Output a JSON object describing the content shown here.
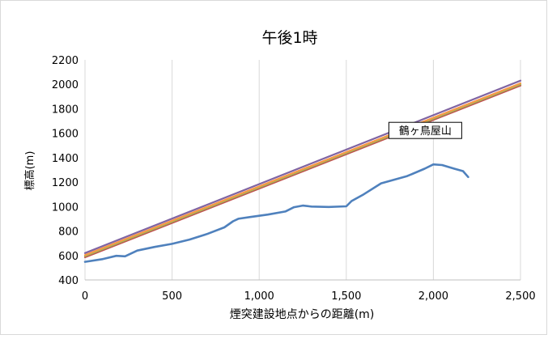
{
  "chart_data": {
    "type": "line",
    "title": "午後1時",
    "xlabel": "煙突建設地点からの距離(m)",
    "ylabel": "標高(m)",
    "xlim": [
      0,
      2500
    ],
    "ylim": [
      400,
      2200
    ],
    "grid": "vertical",
    "x_ticks": [
      0,
      500,
      1000,
      1500,
      2000,
      2500
    ],
    "x_tick_labels": [
      "0",
      "500",
      "1,000",
      "1,500",
      "2,000",
      "2,500"
    ],
    "y_ticks": [
      400,
      600,
      800,
      1000,
      1200,
      1400,
      1600,
      1800,
      2000,
      2200
    ],
    "y_tick_labels": [
      "400",
      "600",
      "800",
      "1000",
      "1200",
      "1400",
      "1600",
      "1800",
      "2000",
      "2200"
    ],
    "series": [
      {
        "color": "#c0504d",
        "values": [
          [
            0,
            585
          ],
          [
            2500,
            1990
          ]
        ]
      },
      {
        "color": "#9bbb59",
        "values": [
          [
            0,
            595
          ],
          [
            2500,
            2000
          ]
        ]
      },
      {
        "color": "#f79646",
        "values": [
          [
            0,
            603
          ],
          [
            2500,
            2008
          ]
        ]
      },
      {
        "color": "#8064a2",
        "values": [
          [
            0,
            620
          ],
          [
            2500,
            2030
          ]
        ]
      },
      {
        "color": "#4f81bd",
        "values": [
          [
            0,
            548
          ],
          [
            100,
            570
          ],
          [
            180,
            597
          ],
          [
            230,
            593
          ],
          [
            300,
            640
          ],
          [
            400,
            670
          ],
          [
            500,
            695
          ],
          [
            600,
            730
          ],
          [
            700,
            775
          ],
          [
            800,
            830
          ],
          [
            850,
            880
          ],
          [
            880,
            900
          ],
          [
            950,
            915
          ],
          [
            1050,
            935
          ],
          [
            1150,
            960
          ],
          [
            1200,
            995
          ],
          [
            1250,
            1008
          ],
          [
            1300,
            1000
          ],
          [
            1400,
            997
          ],
          [
            1500,
            1002
          ],
          [
            1530,
            1045
          ],
          [
            1600,
            1100
          ],
          [
            1700,
            1190
          ],
          [
            1850,
            1250
          ],
          [
            1950,
            1310
          ],
          [
            2000,
            1345
          ],
          [
            2050,
            1340
          ],
          [
            2120,
            1310
          ],
          [
            2170,
            1290
          ],
          [
            2200,
            1242
          ]
        ]
      }
    ],
    "annotations": [
      {
        "text": "鶴ヶ鳥屋山",
        "x": 2000,
        "y": 1345
      }
    ]
  }
}
